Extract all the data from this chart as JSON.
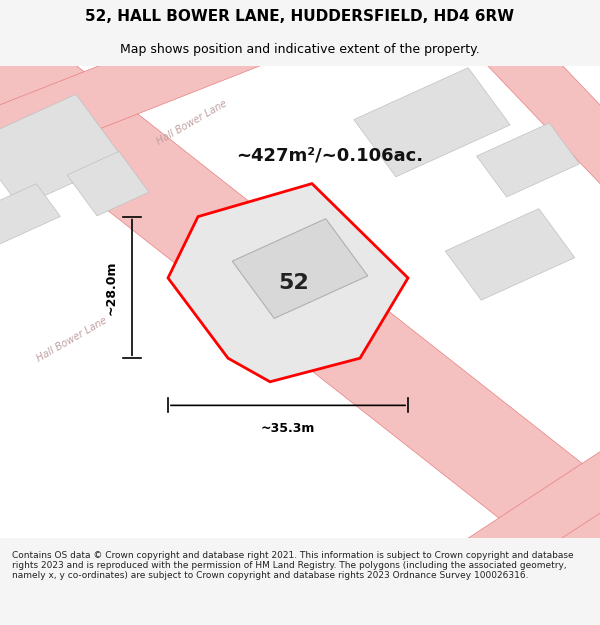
{
  "title": "52, HALL BOWER LANE, HUDDERSFIELD, HD4 6RW",
  "subtitle": "Map shows position and indicative extent of the property.",
  "area_text": "~427m²/~0.106ac.",
  "label_52": "52",
  "dim_width": "~35.3m",
  "dim_height": "~28.0m",
  "footer": "Contains OS data © Crown copyright and database right 2021. This information is subject to Crown copyright and database rights 2023 and is reproduced with the permission of HM Land Registry. The polygons (including the associated geometry, namely x, y co-ordinates) are subject to Crown copyright and database rights 2023 Ordnance Survey 100026316.",
  "bg_color": "#f5f5f5",
  "plot_bg": "#f0f0f0",
  "map_bg": "#ffffff",
  "road_color": "#f5c0c0",
  "road_edge_color": "#e88080",
  "building_fill": "#e0e0e0",
  "building_edge": "#c0c0c0",
  "property_fill": "#e8e8e8",
  "property_edge": "#ff0000",
  "dim_color": "#000000",
  "title_color": "#000000",
  "road_label_color": "#b0b0b0",
  "road_label_color2": "#c0a0a0"
}
